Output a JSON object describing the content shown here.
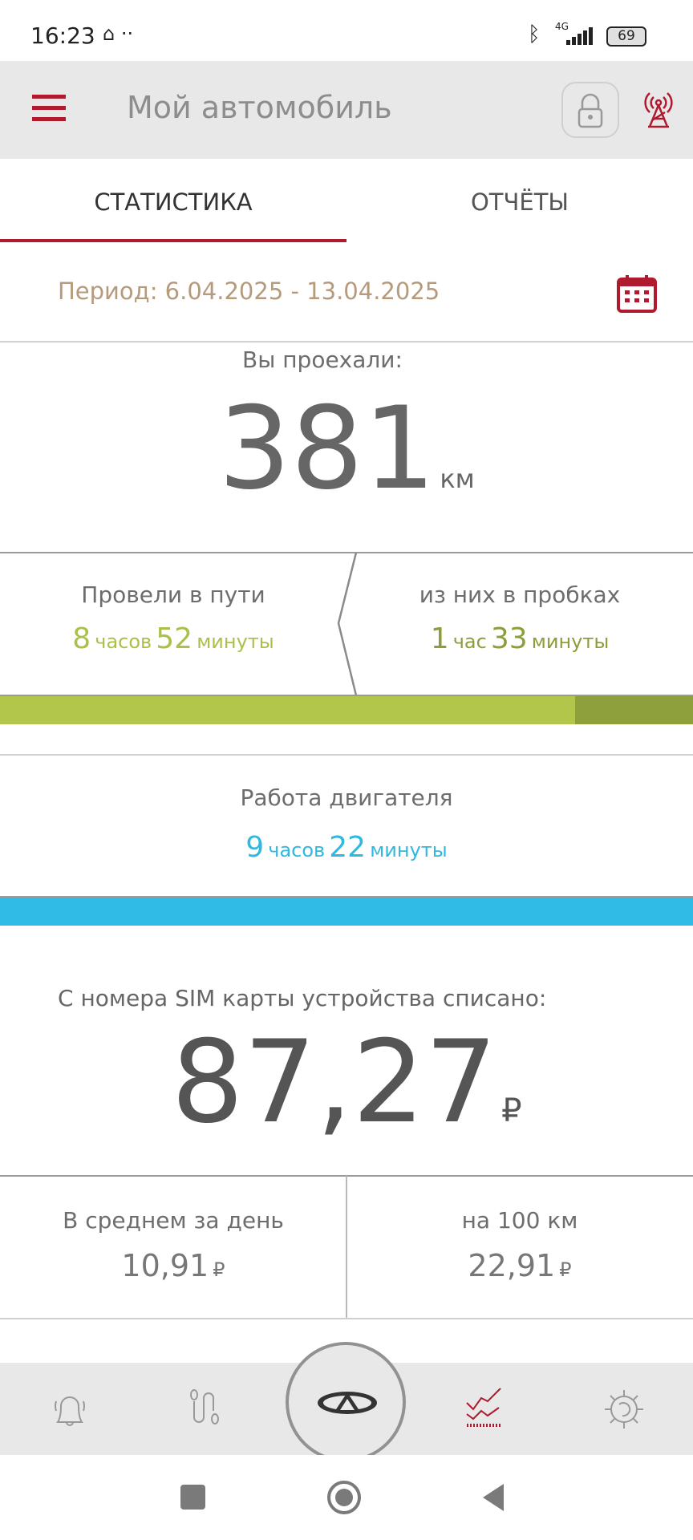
{
  "status_bar": {
    "time": "16:23",
    "battery": "69",
    "network": "4G"
  },
  "header": {
    "title": "Мой автомобиль"
  },
  "tabs": [
    {
      "label": "СТАТИСТИКА",
      "active": true
    },
    {
      "label": "ОТЧЁТЫ",
      "active": false
    }
  ],
  "period": {
    "label": "Период: 6.04.2025 - 13.04.2025"
  },
  "distance": {
    "label": "Вы проехали:",
    "value": "381",
    "unit": "км"
  },
  "drive": {
    "label": "Провели в пути",
    "hours": "8",
    "hours_unit": "часов",
    "minutes": "52",
    "minutes_unit": "минуты"
  },
  "traffic": {
    "label": "из них в пробках",
    "hours": "1",
    "hours_unit": "час",
    "minutes": "33",
    "minutes_unit": "минуты"
  },
  "drive_bar": {
    "traffic_fraction": 0.17
  },
  "engine": {
    "label": "Работа двигателя",
    "hours": "9",
    "hours_unit": "часов",
    "minutes": "22",
    "minutes_unit": "минуты"
  },
  "sim": {
    "label": "С номера SIM карты устройства списано:",
    "value": "87,27",
    "unit": "₽"
  },
  "avg_day": {
    "label": "В среднем за день",
    "value": "10,91",
    "unit": "₽"
  },
  "per_100": {
    "label": "на 100 км",
    "value": "22,91",
    "unit": "₽"
  },
  "colors": {
    "accent": "#b01a2e",
    "green": "#b2c64c",
    "dark_green": "#8da03c",
    "blue": "#2fbbe6",
    "period": "#b59a7c"
  }
}
